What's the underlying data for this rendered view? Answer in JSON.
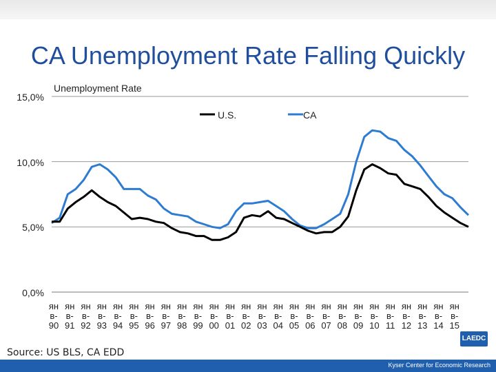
{
  "slide": {
    "title": "CA Unemployment Rate Falling Quickly",
    "source": "Source: US BLS, CA EDD",
    "footer": "Kyser Center for Economic Research",
    "logo_text": "LAEDC"
  },
  "colors": {
    "us": "#000000",
    "ca": "#2e7cd1",
    "axis": "#888888",
    "title": "#1f4e9d",
    "footer": "#1f5fae"
  },
  "chart_data": {
    "type": "line",
    "title": "Unemployment Rate",
    "ylim": [
      0,
      15
    ],
    "y_ticks": [
      "15,0%",
      "10,0%",
      "5,0%",
      "0,0%"
    ],
    "y_tick_values": [
      15,
      10,
      5,
      0
    ],
    "x_range": [
      1990,
      2016
    ],
    "categories": [
      "янв-90",
      "янв-91",
      "янв-92",
      "янв-93",
      "янв-94",
      "янв-95",
      "янв-96",
      "янв-97",
      "янв-98",
      "янв-99",
      "янв-00",
      "янв-01",
      "янв-02",
      "янв-03",
      "янв-04",
      "янв-05",
      "янв-06",
      "янв-07",
      "янв-08",
      "янв-09",
      "янв-10",
      "янв-11",
      "янв-12",
      "янв-13",
      "янв-14",
      "янв-15"
    ],
    "tick_lines": [
      [
        "ян",
        "в-",
        "90"
      ],
      [
        "ян",
        "в-",
        "91"
      ],
      [
        "ян",
        "в-",
        "92"
      ],
      [
        "ян",
        "в-",
        "93"
      ],
      [
        "ян",
        "в-",
        "94"
      ],
      [
        "ян",
        "в-",
        "95"
      ],
      [
        "ян",
        "в-",
        "96"
      ],
      [
        "ян",
        "в-",
        "97"
      ],
      [
        "ян",
        "в-",
        "98"
      ],
      [
        "ян",
        "в-",
        "99"
      ],
      [
        "ян",
        "в-",
        "00"
      ],
      [
        "ян",
        "в-",
        "01"
      ],
      [
        "ян",
        "в-",
        "02"
      ],
      [
        "ян",
        "в-",
        "03"
      ],
      [
        "ян",
        "в-",
        "04"
      ],
      [
        "ян",
        "в-",
        "05"
      ],
      [
        "ян",
        "в-",
        "06"
      ],
      [
        "ян",
        "в-",
        "07"
      ],
      [
        "ян",
        "в-",
        "08"
      ],
      [
        "ян",
        "в-",
        "09"
      ],
      [
        "ян",
        "в-",
        "10"
      ],
      [
        "ян",
        "в-",
        "11"
      ],
      [
        "ян",
        "в-",
        "12"
      ],
      [
        "ян",
        "в-",
        "13"
      ],
      [
        "ян",
        "в-",
        "14"
      ],
      [
        "ян",
        "в-",
        "15"
      ]
    ],
    "legend": {
      "position": "top",
      "entries": [
        "U.S.",
        "CA"
      ]
    },
    "series": [
      {
        "name": "U.S.",
        "x": [
          1990,
          1990.5,
          1991,
          1991.5,
          1992,
          1992.5,
          1993,
          1993.5,
          1994,
          1994.5,
          1995,
          1995.5,
          1996,
          1996.5,
          1997,
          1997.5,
          1998,
          1998.5,
          1999,
          1999.5,
          2000,
          2000.5,
          2001,
          2001.5,
          2002,
          2002.5,
          2003,
          2003.5,
          2004,
          2004.5,
          2005,
          2005.5,
          2006,
          2006.5,
          2007,
          2007.5,
          2008,
          2008.5,
          2009,
          2009.5,
          2010,
          2010.5,
          2011,
          2011.5,
          2012,
          2012.5,
          2013,
          2013.5,
          2014,
          2014.5,
          2015,
          2015.5,
          2016
        ],
        "values": [
          5.4,
          5.4,
          6.4,
          6.9,
          7.3,
          7.8,
          7.3,
          6.9,
          6.6,
          6.1,
          5.6,
          5.7,
          5.6,
          5.4,
          5.3,
          4.9,
          4.6,
          4.5,
          4.3,
          4.3,
          4.0,
          4.0,
          4.2,
          4.6,
          5.7,
          5.9,
          5.8,
          6.2,
          5.7,
          5.6,
          5.3,
          5.0,
          4.7,
          4.5,
          4.6,
          4.6,
          5.0,
          5.8,
          7.8,
          9.4,
          9.8,
          9.5,
          9.1,
          9.0,
          8.3,
          8.1,
          7.9,
          7.3,
          6.6,
          6.1,
          5.7,
          5.3,
          5.0
        ]
      },
      {
        "name": "CA",
        "x": [
          1990,
          1990.5,
          1991,
          1991.5,
          1992,
          1992.5,
          1993,
          1993.5,
          1994,
          1994.5,
          1995,
          1995.5,
          1996,
          1996.5,
          1997,
          1997.5,
          1998,
          1998.5,
          1999,
          1999.5,
          2000,
          2000.5,
          2001,
          2001.5,
          2002,
          2002.5,
          2003,
          2003.5,
          2004,
          2004.5,
          2005,
          2005.5,
          2006,
          2006.5,
          2007,
          2007.5,
          2008,
          2008.5,
          2009,
          2009.5,
          2010,
          2010.5,
          2011,
          2011.5,
          2012,
          2012.5,
          2013,
          2013.5,
          2014,
          2014.5,
          2015,
          2015.5,
          2016
        ],
        "values": [
          5.3,
          5.7,
          7.5,
          7.9,
          8.6,
          9.6,
          9.8,
          9.4,
          8.8,
          7.9,
          7.9,
          7.9,
          7.4,
          7.1,
          6.4,
          6.0,
          5.9,
          5.8,
          5.4,
          5.2,
          5.0,
          4.9,
          5.2,
          6.2,
          6.8,
          6.8,
          6.9,
          7.0,
          6.6,
          6.2,
          5.6,
          5.1,
          4.9,
          4.9,
          5.2,
          5.6,
          6.0,
          7.5,
          10.0,
          11.9,
          12.4,
          12.3,
          11.8,
          11.6,
          10.9,
          10.4,
          9.7,
          8.9,
          8.1,
          7.5,
          7.2,
          6.5,
          5.9
        ]
      }
    ]
  }
}
